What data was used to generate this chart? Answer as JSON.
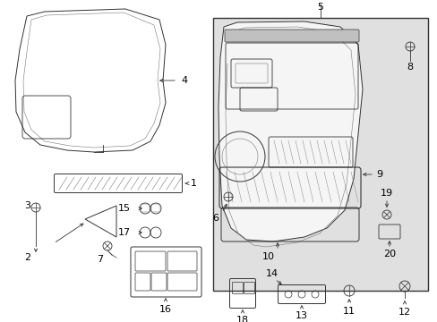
{
  "bg_color": "#ffffff",
  "box_bg": "#e8e8e8",
  "gray": "#333333",
  "lgray": "#777777"
}
